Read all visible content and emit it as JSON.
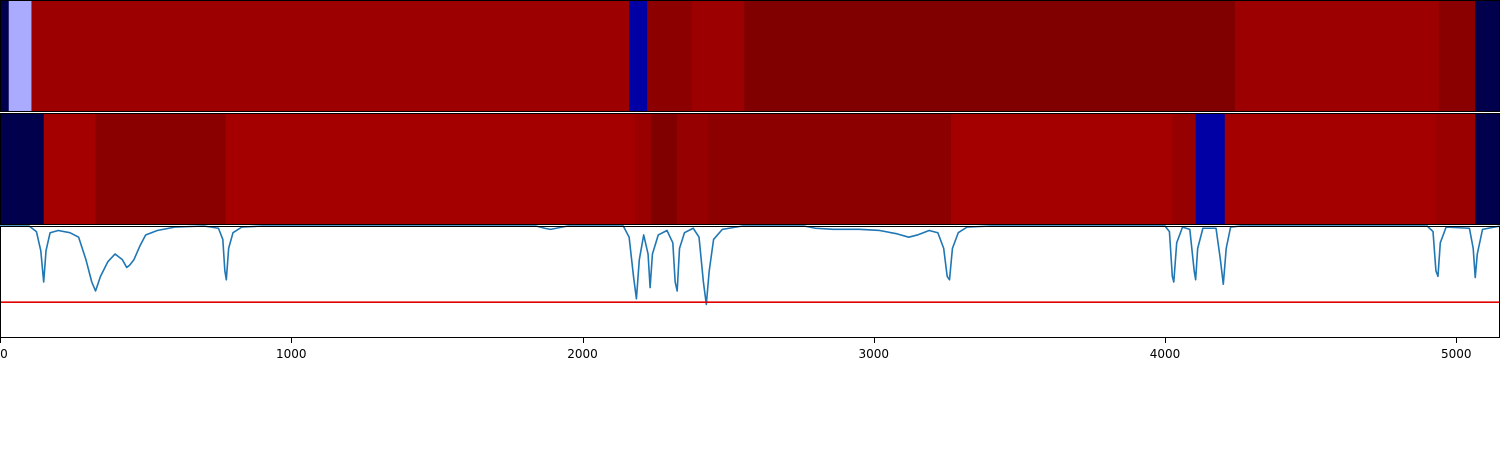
{
  "chart_data": {
    "type": "heatmap",
    "xlim": [
      0,
      5150
    ],
    "x_ticks": [
      0,
      1000,
      2000,
      3000,
      4000,
      5000
    ],
    "x_tick_labels": [
      "0",
      "1000",
      "2000",
      "3000",
      "4000",
      "5000"
    ],
    "color_scale": "seismic",
    "tracks": [
      {
        "segments": [
          {
            "start": 0,
            "end": 30,
            "color": "#00004c"
          },
          {
            "start": 30,
            "end": 108,
            "color": "#aaaaff"
          },
          {
            "start": 108,
            "end": 2160,
            "color": "#9c0000"
          },
          {
            "start": 2160,
            "end": 2222,
            "color": "#0000a5"
          },
          {
            "start": 2222,
            "end": 2375,
            "color": "#8c0000"
          },
          {
            "start": 2375,
            "end": 2555,
            "color": "#9c0000"
          },
          {
            "start": 2555,
            "end": 4240,
            "color": "#800000"
          },
          {
            "start": 4240,
            "end": 4940,
            "color": "#9c0000"
          },
          {
            "start": 4940,
            "end": 5065,
            "color": "#8a0000"
          },
          {
            "start": 5065,
            "end": 5150,
            "color": "#00004c"
          }
        ]
      },
      {
        "segments": [
          {
            "start": 0,
            "end": 150,
            "color": "#00004c"
          },
          {
            "start": 150,
            "end": 328,
            "color": "#a50000"
          },
          {
            "start": 328,
            "end": 775,
            "color": "#8a0000"
          },
          {
            "start": 775,
            "end": 2180,
            "color": "#a50000"
          },
          {
            "start": 2180,
            "end": 2235,
            "color": "#9a0000"
          },
          {
            "start": 2235,
            "end": 2325,
            "color": "#800000"
          },
          {
            "start": 2325,
            "end": 2430,
            "color": "#960000"
          },
          {
            "start": 2430,
            "end": 3265,
            "color": "#8c0000"
          },
          {
            "start": 3265,
            "end": 4025,
            "color": "#a50000"
          },
          {
            "start": 4025,
            "end": 4105,
            "color": "#960000"
          },
          {
            "start": 4105,
            "end": 4205,
            "color": "#0000a5"
          },
          {
            "start": 4205,
            "end": 4930,
            "color": "#a50000"
          },
          {
            "start": 4930,
            "end": 5065,
            "color": "#9a0000"
          },
          {
            "start": 5065,
            "end": 5150,
            "color": "#00004c"
          }
        ]
      }
    ],
    "line_series": {
      "color": "#1f77b4",
      "ylim": [
        -1.0,
        0.0
      ],
      "points": [
        [
          0,
          0.0
        ],
        [
          100,
          0.0
        ],
        [
          125,
          -0.05
        ],
        [
          140,
          -0.22
        ],
        [
          150,
          -0.5
        ],
        [
          158,
          -0.22
        ],
        [
          172,
          -0.06
        ],
        [
          200,
          -0.04
        ],
        [
          240,
          -0.06
        ],
        [
          270,
          -0.1
        ],
        [
          295,
          -0.3
        ],
        [
          315,
          -0.5
        ],
        [
          328,
          -0.58
        ],
        [
          345,
          -0.45
        ],
        [
          370,
          -0.32
        ],
        [
          395,
          -0.25
        ],
        [
          420,
          -0.3
        ],
        [
          435,
          -0.37
        ],
        [
          445,
          -0.35
        ],
        [
          460,
          -0.3
        ],
        [
          480,
          -0.18
        ],
        [
          500,
          -0.08
        ],
        [
          540,
          -0.04
        ],
        [
          600,
          -0.01
        ],
        [
          700,
          0.0
        ],
        [
          750,
          -0.02
        ],
        [
          765,
          -0.12
        ],
        [
          772,
          -0.4
        ],
        [
          777,
          -0.48
        ],
        [
          785,
          -0.2
        ],
        [
          800,
          -0.06
        ],
        [
          830,
          -0.01
        ],
        [
          900,
          0.0
        ],
        [
          1840,
          0.0
        ],
        [
          1870,
          -0.02
        ],
        [
          1890,
          -0.03
        ],
        [
          1910,
          -0.02
        ],
        [
          1950,
          0.0
        ],
        [
          2140,
          0.0
        ],
        [
          2160,
          -0.1
        ],
        [
          2175,
          -0.45
        ],
        [
          2185,
          -0.65
        ],
        [
          2195,
          -0.3
        ],
        [
          2210,
          -0.08
        ],
        [
          2225,
          -0.25
        ],
        [
          2232,
          -0.55
        ],
        [
          2240,
          -0.25
        ],
        [
          2260,
          -0.08
        ],
        [
          2290,
          -0.04
        ],
        [
          2310,
          -0.15
        ],
        [
          2318,
          -0.5
        ],
        [
          2325,
          -0.58
        ],
        [
          2333,
          -0.2
        ],
        [
          2350,
          -0.06
        ],
        [
          2380,
          -0.02
        ],
        [
          2400,
          -0.1
        ],
        [
          2415,
          -0.5
        ],
        [
          2425,
          -0.7
        ],
        [
          2435,
          -0.4
        ],
        [
          2450,
          -0.12
        ],
        [
          2480,
          -0.03
        ],
        [
          2550,
          0.0
        ],
        [
          2760,
          0.0
        ],
        [
          2800,
          -0.02
        ],
        [
          2860,
          -0.03
        ],
        [
          2950,
          -0.03
        ],
        [
          3020,
          -0.04
        ],
        [
          3080,
          -0.07
        ],
        [
          3120,
          -0.1
        ],
        [
          3150,
          -0.08
        ],
        [
          3190,
          -0.04
        ],
        [
          3220,
          -0.06
        ],
        [
          3240,
          -0.2
        ],
        [
          3252,
          -0.45
        ],
        [
          3260,
          -0.48
        ],
        [
          3270,
          -0.2
        ],
        [
          3290,
          -0.06
        ],
        [
          3320,
          -0.01
        ],
        [
          3400,
          0.0
        ],
        [
          4000,
          0.0
        ],
        [
          4015,
          -0.05
        ],
        [
          4025,
          -0.45
        ],
        [
          4030,
          -0.5
        ],
        [
          4040,
          -0.15
        ],
        [
          4060,
          -0.01
        ],
        [
          4085,
          -0.03
        ],
        [
          4100,
          -0.4
        ],
        [
          4105,
          -0.48
        ],
        [
          4112,
          -0.2
        ],
        [
          4130,
          -0.02
        ],
        [
          4175,
          -0.02
        ],
        [
          4190,
          -0.3
        ],
        [
          4200,
          -0.52
        ],
        [
          4210,
          -0.2
        ],
        [
          4225,
          -0.01
        ],
        [
          4260,
          0.0
        ],
        [
          4900,
          0.0
        ],
        [
          4920,
          -0.05
        ],
        [
          4930,
          -0.4
        ],
        [
          4937,
          -0.45
        ],
        [
          4945,
          -0.15
        ],
        [
          4965,
          -0.01
        ],
        [
          5045,
          -0.02
        ],
        [
          5058,
          -0.2
        ],
        [
          5065,
          -0.46
        ],
        [
          5072,
          -0.25
        ],
        [
          5090,
          -0.03
        ],
        [
          5150,
          0.0
        ]
      ]
    },
    "threshold_line": {
      "y": -0.68,
      "color": "#e00000"
    }
  }
}
